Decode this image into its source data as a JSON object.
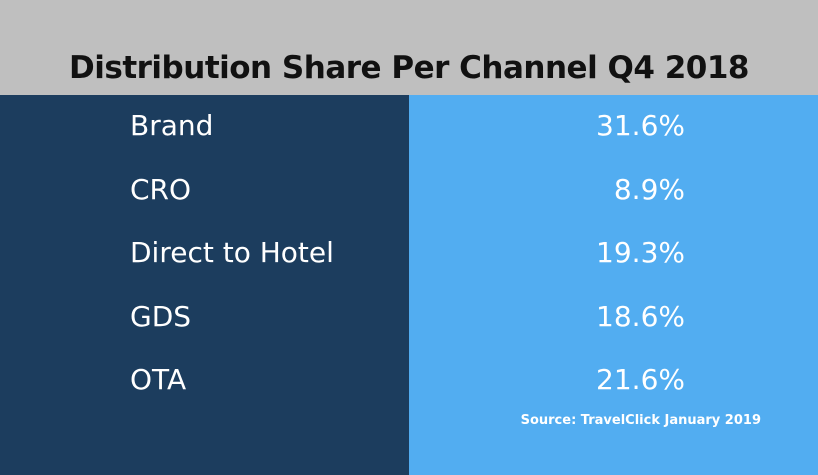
{
  "chart_data": {
    "type": "table",
    "title": "Distribution Share Per Channel Q4 2018",
    "categories": [
      "Brand",
      "CRO",
      "Direct to Hotel",
      "GDS",
      "OTA"
    ],
    "values": [
      "31.6%",
      "8.9%",
      "19.3%",
      "18.6%",
      "21.6%"
    ],
    "source": "Source: TravelClick January 2019"
  },
  "colors": {
    "header_bg": "#bfbfbf",
    "left_panel": "#1c3d5e",
    "right_panel": "#52adf1",
    "text": "#ffffff"
  }
}
